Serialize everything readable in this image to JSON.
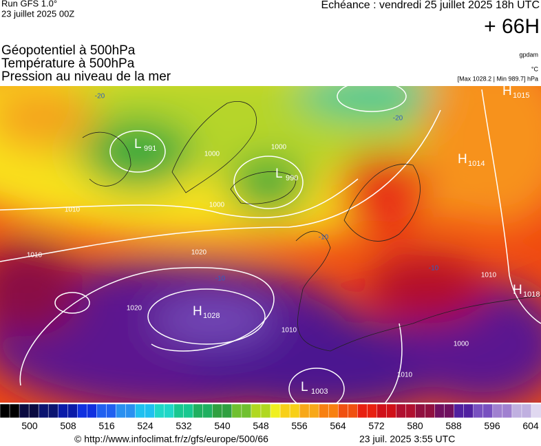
{
  "header": {
    "run": "Run GFS 1.0°",
    "run_date": "23 juillet 2025 00Z",
    "forecast": "Echéance : vendredi 25 juillet 2025 18h UTC",
    "lead": "+ 66H"
  },
  "titles": [
    "Géopotentiel à 500hPa",
    "Température à 500hPa",
    "Pression au niveau de la mer"
  ],
  "units": {
    "geopotential": "gpdam",
    "temperature": "°C",
    "pressure": "[Max 1028.2 | Min 989.7] hPa"
  },
  "centers": [
    {
      "kind": "H",
      "value": "1015"
    },
    {
      "kind": "H",
      "value": "1014"
    },
    {
      "kind": "L",
      "value": "990"
    },
    {
      "kind": "L",
      "value": "991"
    },
    {
      "kind": "H",
      "value": "1028"
    },
    {
      "kind": "H",
      "value": "1018"
    },
    {
      "kind": "L",
      "value": "1003"
    }
  ],
  "contour_labels": [
    "1010",
    "1010",
    "1020",
    "1000",
    "1000",
    "1000",
    "1020",
    "1010",
    "1010",
    "1000",
    "1010",
    "-20",
    "-20",
    "-10",
    "-10",
    "-10"
  ],
  "colorbar": {
    "ticks": [
      500,
      508,
      516,
      524,
      532,
      540,
      548,
      556,
      564,
      572,
      580,
      588,
      596,
      604
    ]
  },
  "footer": {
    "url": "© http://www.infoclimat.fr/z/gfs/europe/500/66",
    "timestamp": "23 juil. 2025  3:55 UTC"
  }
}
